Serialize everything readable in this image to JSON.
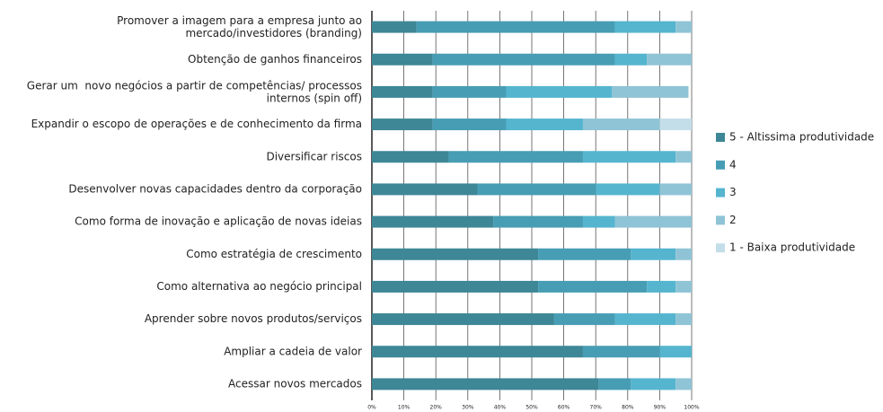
{
  "chart_data": {
    "type": "stacked_barh",
    "categories": [
      "Promover a imagem para a empresa junto ao\nmercado/investidores (branding)",
      "Obtenção de ganhos financeiros",
      "Gerar um  novo negócios a partir de competências/ processos\ninternos (spin off)",
      "Expandir o escopo de operações e de conhecimento da firma",
      "Diversificar riscos",
      "Desenvolver novas capacidades dentro da corporação",
      "Como forma de inovação e aplicação de novas ideias",
      "Como estratégia de crescimento",
      "Como alternativa ao negócio principal",
      "Aprender sobre novos produtos/serviços",
      "Ampliar a cadeia de valor",
      "Acessar novos mercados"
    ],
    "series": [
      {
        "name": "5 - Altissima produtividade",
        "color": "#3d8796",
        "values": [
          14,
          19,
          19,
          19,
          24,
          33,
          38,
          52,
          52,
          57,
          66,
          71
        ]
      },
      {
        "name": "4",
        "color": "#479db4",
        "values": [
          62,
          57,
          23,
          23,
          42,
          37,
          28,
          29,
          34,
          19,
          24,
          10
        ]
      },
      {
        "name": "3",
        "color": "#55b5cf",
        "values": [
          19,
          10,
          33,
          24,
          29,
          20,
          10,
          14,
          9,
          19,
          10,
          14
        ]
      },
      {
        "name": "2",
        "color": "#8fc4d6",
        "values": [
          5,
          14,
          24,
          24,
          5,
          10,
          24,
          5,
          5,
          5,
          0,
          5
        ]
      },
      {
        "name": "1 - Baixa produtividade",
        "color": "#c3dee8",
        "values": [
          0,
          0,
          0,
          10,
          0,
          0,
          0,
          0,
          0,
          0,
          0,
          0
        ]
      }
    ],
    "xlim": [
      0,
      100
    ],
    "xticks": [
      {
        "value": 0,
        "label": "0%"
      },
      {
        "value": 10,
        "label": "10%"
      },
      {
        "value": 20,
        "label": "20%"
      },
      {
        "value": 30,
        "label": "30%"
      },
      {
        "value": 40,
        "label": "40%"
      },
      {
        "value": 50,
        "label": "50%"
      },
      {
        "value": 60,
        "label": "60%"
      },
      {
        "value": 70,
        "label": "70%"
      },
      {
        "value": 80,
        "label": "80%"
      },
      {
        "value": 90,
        "label": "90%"
      },
      {
        "value": 100,
        "label": "100%"
      }
    ],
    "grid": true,
    "legend": "right"
  }
}
